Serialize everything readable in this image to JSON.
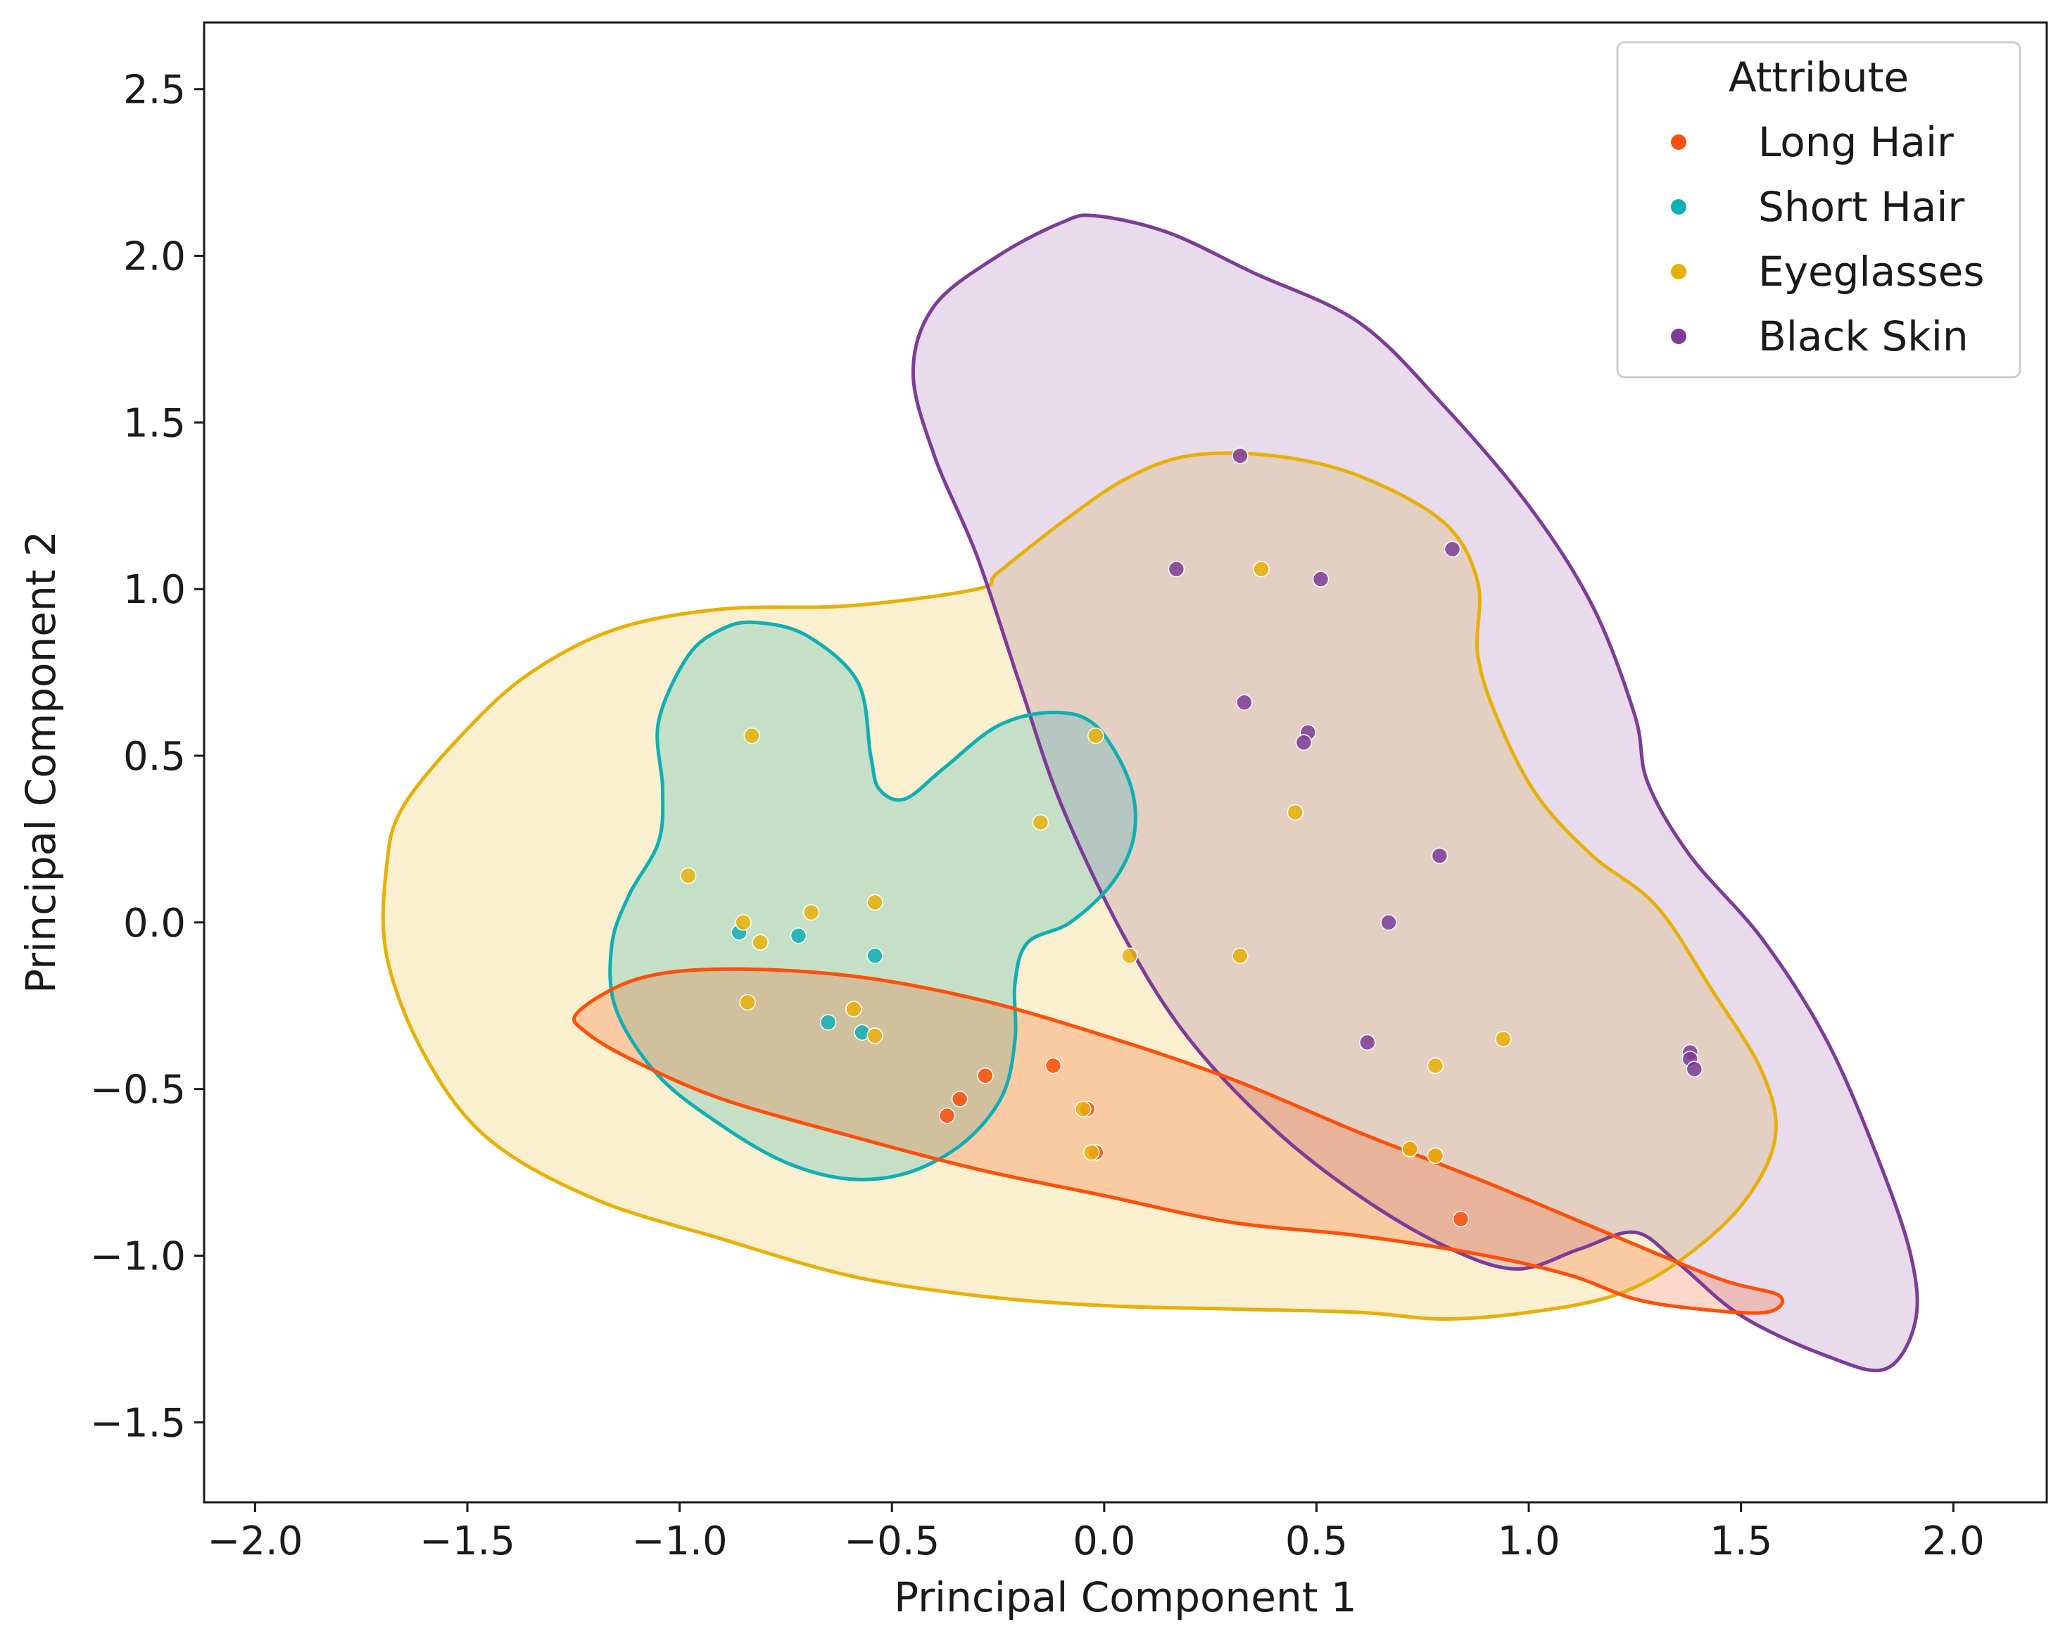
{
  "chart_data": {
    "type": "scatter",
    "title": "",
    "xlabel": "Principal Component 1",
    "ylabel": "Principal Component 2",
    "xlim": [
      -2.12,
      2.22
    ],
    "ylim": [
      -1.74,
      2.7
    ],
    "xticks": [
      -2.0,
      -1.5,
      -1.0,
      -0.5,
      0.0,
      0.5,
      1.0,
      1.5,
      2.0
    ],
    "yticks": [
      -1.5,
      -1.0,
      -0.5,
      0.0,
      0.5,
      1.0,
      1.5,
      2.0,
      2.5
    ],
    "xtick_labels": [
      "−2.0",
      "−1.5",
      "−1.0",
      "−0.5",
      "0.0",
      "0.5",
      "1.0",
      "1.5",
      "2.0"
    ],
    "ytick_labels": [
      "−1.5",
      "−1.0",
      "−0.5",
      "0.0",
      "0.5",
      "1.0",
      "1.5",
      "2.0",
      "2.5"
    ],
    "grid": false,
    "legend": {
      "title": "Attribute",
      "position": "top-right"
    },
    "series": [
      {
        "name": "Long Hair",
        "color": "#FC4F0A",
        "points": [
          [
            -0.12,
            -0.43
          ],
          [
            -0.28,
            -0.46
          ],
          [
            -0.34,
            -0.53
          ],
          [
            -0.37,
            -0.58
          ],
          [
            0.84,
            -0.89
          ],
          [
            -0.04,
            -0.56
          ],
          [
            -0.02,
            -0.69
          ],
          [
            0.72,
            -0.68
          ],
          [
            0.78,
            -0.7
          ]
        ],
        "contour": [
          [
            -1.24,
            -0.27
          ],
          [
            -1.1,
            -0.17
          ],
          [
            -0.9,
            -0.14
          ],
          [
            -0.6,
            -0.16
          ],
          [
            -0.3,
            -0.23
          ],
          [
            0.0,
            -0.34
          ],
          [
            0.3,
            -0.47
          ],
          [
            0.6,
            -0.63
          ],
          [
            0.9,
            -0.78
          ],
          [
            1.2,
            -0.94
          ],
          [
            1.45,
            -1.07
          ],
          [
            1.59,
            -1.12
          ],
          [
            1.56,
            -1.17
          ],
          [
            1.4,
            -1.16
          ],
          [
            1.25,
            -1.13
          ],
          [
            1.1,
            -1.06
          ],
          [
            0.9,
            -1.0
          ],
          [
            0.6,
            -0.94
          ],
          [
            0.3,
            -0.9
          ],
          [
            0.0,
            -0.82
          ],
          [
            -0.3,
            -0.74
          ],
          [
            -0.6,
            -0.64
          ],
          [
            -0.9,
            -0.53
          ],
          [
            -1.1,
            -0.42
          ],
          [
            -1.22,
            -0.33
          ]
        ]
      },
      {
        "name": "Short Hair",
        "color": "#0FAFB4",
        "points": [
          [
            -0.86,
            -0.03
          ],
          [
            -0.72,
            -0.04
          ],
          [
            -0.54,
            -0.1
          ],
          [
            -0.65,
            -0.3
          ],
          [
            -0.57,
            -0.33
          ]
        ],
        "contour": [
          [
            -0.82,
            0.9
          ],
          [
            -0.7,
            0.86
          ],
          [
            -0.58,
            0.72
          ],
          [
            -0.55,
            0.5
          ],
          [
            -0.53,
            0.4
          ],
          [
            -0.47,
            0.37
          ],
          [
            -0.38,
            0.46
          ],
          [
            -0.25,
            0.59
          ],
          [
            -0.12,
            0.63
          ],
          [
            -0.02,
            0.59
          ],
          [
            0.06,
            0.42
          ],
          [
            0.07,
            0.26
          ],
          [
            0.02,
            0.12
          ],
          [
            -0.08,
            0.0
          ],
          [
            -0.18,
            -0.06
          ],
          [
            -0.21,
            -0.18
          ],
          [
            -0.21,
            -0.35
          ],
          [
            -0.24,
            -0.52
          ],
          [
            -0.33,
            -0.66
          ],
          [
            -0.46,
            -0.75
          ],
          [
            -0.6,
            -0.77
          ],
          [
            -0.75,
            -0.72
          ],
          [
            -0.9,
            -0.61
          ],
          [
            -1.05,
            -0.46
          ],
          [
            -1.15,
            -0.26
          ],
          [
            -1.16,
            -0.07
          ],
          [
            -1.12,
            0.08
          ],
          [
            -1.05,
            0.24
          ],
          [
            -1.04,
            0.4
          ],
          [
            -1.05,
            0.6
          ],
          [
            -0.98,
            0.8
          ],
          [
            -0.9,
            0.88
          ]
        ]
      },
      {
        "name": "Eyeglasses",
        "color": "#E7B008",
        "points": [
          [
            -0.83,
            0.56
          ],
          [
            -0.02,
            0.56
          ],
          [
            -0.15,
            0.3
          ],
          [
            -0.98,
            0.14
          ],
          [
            -0.85,
            0.0
          ],
          [
            -0.69,
            0.03
          ],
          [
            -0.54,
            0.06
          ],
          [
            -0.81,
            -0.06
          ],
          [
            -0.84,
            -0.24
          ],
          [
            -0.59,
            -0.26
          ],
          [
            -0.54,
            -0.34
          ],
          [
            0.06,
            -0.1
          ],
          [
            0.37,
            1.06
          ],
          [
            0.45,
            0.33
          ],
          [
            0.32,
            -0.1
          ],
          [
            0.94,
            -0.35
          ],
          [
            0.78,
            -0.43
          ],
          [
            -0.05,
            -0.56
          ],
          [
            -0.03,
            -0.69
          ],
          [
            0.72,
            -0.68
          ],
          [
            0.78,
            -0.7
          ]
        ],
        "contour": [
          [
            -1.69,
            0.17
          ],
          [
            -1.65,
            0.35
          ],
          [
            -1.5,
            0.58
          ],
          [
            -1.35,
            0.75
          ],
          [
            -1.15,
            0.88
          ],
          [
            -0.9,
            0.94
          ],
          [
            -0.6,
            0.95
          ],
          [
            -0.3,
            1.0
          ],
          [
            -0.25,
            1.05
          ],
          [
            -0.1,
            1.2
          ],
          [
            0.05,
            1.33
          ],
          [
            0.2,
            1.4
          ],
          [
            0.4,
            1.4
          ],
          [
            0.6,
            1.34
          ],
          [
            0.8,
            1.2
          ],
          [
            0.88,
            1.02
          ],
          [
            0.88,
            0.8
          ],
          [
            0.93,
            0.6
          ],
          [
            1.02,
            0.38
          ],
          [
            1.15,
            0.2
          ],
          [
            1.3,
            0.05
          ],
          [
            1.43,
            -0.2
          ],
          [
            1.55,
            -0.45
          ],
          [
            1.58,
            -0.65
          ],
          [
            1.5,
            -0.85
          ],
          [
            1.35,
            -1.02
          ],
          [
            1.2,
            -1.12
          ],
          [
            1.0,
            -1.17
          ],
          [
            0.8,
            -1.19
          ],
          [
            0.6,
            -1.17
          ],
          [
            0.3,
            -1.16
          ],
          [
            0.0,
            -1.15
          ],
          [
            -0.3,
            -1.12
          ],
          [
            -0.6,
            -1.06
          ],
          [
            -0.9,
            -0.95
          ],
          [
            -1.2,
            -0.83
          ],
          [
            -1.45,
            -0.65
          ],
          [
            -1.6,
            -0.4
          ],
          [
            -1.69,
            -0.1
          ]
        ]
      },
      {
        "name": "Black Skin",
        "color": "#7D3C98",
        "points": [
          [
            0.32,
            1.4
          ],
          [
            0.82,
            1.12
          ],
          [
            0.17,
            1.06
          ],
          [
            0.51,
            1.03
          ],
          [
            0.33,
            0.66
          ],
          [
            0.48,
            0.57
          ],
          [
            0.47,
            0.54
          ],
          [
            0.79,
            0.2
          ],
          [
            0.67,
            0.0
          ],
          [
            0.62,
            -0.36
          ],
          [
            1.38,
            -0.39
          ],
          [
            1.38,
            -0.41
          ],
          [
            1.39,
            -0.44
          ]
        ],
        "contour": [
          [
            -0.02,
            2.12
          ],
          [
            0.15,
            2.07
          ],
          [
            0.35,
            1.95
          ],
          [
            0.6,
            1.8
          ],
          [
            0.8,
            1.55
          ],
          [
            1.0,
            1.25
          ],
          [
            1.15,
            0.95
          ],
          [
            1.25,
            0.62
          ],
          [
            1.28,
            0.42
          ],
          [
            1.38,
            0.2
          ],
          [
            1.55,
            -0.05
          ],
          [
            1.7,
            -0.35
          ],
          [
            1.82,
            -0.7
          ],
          [
            1.9,
            -1.0
          ],
          [
            1.91,
            -1.2
          ],
          [
            1.84,
            -1.34
          ],
          [
            1.7,
            -1.3
          ],
          [
            1.5,
            -1.18
          ],
          [
            1.35,
            -1.02
          ],
          [
            1.25,
            -0.93
          ],
          [
            1.12,
            -0.98
          ],
          [
            0.97,
            -1.04
          ],
          [
            0.8,
            -0.97
          ],
          [
            0.6,
            -0.82
          ],
          [
            0.4,
            -0.62
          ],
          [
            0.2,
            -0.35
          ],
          [
            0.05,
            -0.05
          ],
          [
            -0.1,
            0.35
          ],
          [
            -0.2,
            0.72
          ],
          [
            -0.3,
            1.1
          ],
          [
            -0.4,
            1.4
          ],
          [
            -0.45,
            1.65
          ],
          [
            -0.4,
            1.85
          ],
          [
            -0.25,
            2.0
          ],
          [
            -0.1,
            2.1
          ]
        ]
      }
    ]
  }
}
